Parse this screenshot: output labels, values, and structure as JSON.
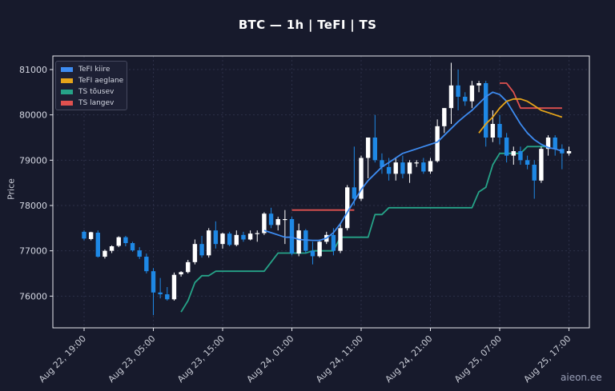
{
  "page": {
    "title": "BTC — 1h  |  TeFI  |  TS",
    "watermark": "aieon.ee"
  },
  "colors": {
    "background": "#171a2c",
    "up": "#ffffff",
    "down": "#1e88e5",
    "fast": "#3d8bf0",
    "slow": "#e5a41a",
    "ts_up": "#26a388",
    "ts_down": "#e0514f",
    "grid": "#2c3048",
    "axis": "#e8e9ef"
  },
  "chart_data": {
    "type": "candlestick",
    "title": "BTC — 1h  |  TeFI  |  TS",
    "xlabel": "",
    "ylabel": "Price",
    "ylim": [
      75300,
      81300
    ],
    "x_ticks": [
      "Aug 22, 19:00",
      "Aug 23, 05:00",
      "Aug 23, 15:00",
      "Aug 24, 01:00",
      "Aug 24, 11:00",
      "Aug 24, 21:00",
      "Aug 25, 07:00",
      "Aug 25, 17:00"
    ],
    "y_ticks": [
      76000,
      77000,
      78000,
      79000,
      80000,
      81000
    ],
    "grid": true,
    "legend_position": "top-left",
    "legend": [
      {
        "name": "TeFI kiire",
        "color": "#3d8bf0"
      },
      {
        "name": "TeFI aeglane",
        "color": "#e5a41a"
      },
      {
        "name": "TS tõusev",
        "color": "#26a388"
      },
      {
        "name": "TS langev",
        "color": "#e0514f"
      }
    ],
    "candles": [
      [
        77420,
        77450,
        77230,
        77270
      ],
      [
        77260,
        77420,
        77230,
        77410
      ],
      [
        77400,
        77450,
        76850,
        76870
      ],
      [
        76870,
        77030,
        76830,
        77000
      ],
      [
        77000,
        77120,
        76950,
        77100
      ],
      [
        77110,
        77320,
        77080,
        77300
      ],
      [
        77300,
        77330,
        77100,
        77170
      ],
      [
        77170,
        77200,
        76980,
        77010
      ],
      [
        77010,
        77080,
        76820,
        76870
      ],
      [
        76870,
        76940,
        76500,
        76550
      ],
      [
        76550,
        76620,
        75580,
        76080
      ],
      [
        76080,
        76400,
        75950,
        76040
      ],
      [
        76040,
        76200,
        75900,
        75930
      ],
      [
        75930,
        76520,
        75900,
        76470
      ],
      [
        76480,
        76550,
        76430,
        76530
      ],
      [
        76530,
        76800,
        76500,
        76750
      ],
      [
        76750,
        77250,
        76700,
        77150
      ],
      [
        77150,
        77330,
        76850,
        76900
      ],
      [
        76900,
        77500,
        76850,
        77450
      ],
      [
        77450,
        77650,
        77050,
        77150
      ],
      [
        77150,
        77400,
        77050,
        77380
      ],
      [
        77380,
        77420,
        77100,
        77130
      ],
      [
        77130,
        77450,
        77100,
        77350
      ],
      [
        77350,
        77420,
        77200,
        77250
      ],
      [
        77250,
        77450,
        77230,
        77380
      ],
      [
        77380,
        77450,
        77200,
        77390
      ],
      [
        77390,
        77850,
        77350,
        77820
      ],
      [
        77820,
        77950,
        77500,
        77570
      ],
      [
        77570,
        77750,
        77450,
        77700
      ],
      [
        77700,
        77900,
        77150,
        77700
      ],
      [
        77700,
        77750,
        76900,
        76940
      ],
      [
        76940,
        77600,
        76880,
        77450
      ],
      [
        77450,
        77480,
        76950,
        77000
      ],
      [
        77000,
        77200,
        76700,
        76880
      ],
      [
        76880,
        77250,
        76850,
        77200
      ],
      [
        77200,
        77420,
        77150,
        77350
      ],
      [
        77350,
        77500,
        76900,
        77000
      ],
      [
        77000,
        77600,
        76950,
        77500
      ],
      [
        77500,
        78450,
        77450,
        78400
      ],
      [
        78400,
        79300,
        78000,
        78150
      ],
      [
        78150,
        79100,
        78100,
        79050
      ],
      [
        79050,
        79500,
        78600,
        79500
      ],
      [
        79500,
        80000,
        78950,
        79000
      ],
      [
        79000,
        79150,
        78700,
        78850
      ],
      [
        78850,
        79050,
        78550,
        78700
      ],
      [
        78700,
        79050,
        78550,
        78950
      ],
      [
        78950,
        79100,
        78600,
        78700
      ],
      [
        78700,
        79000,
        78500,
        78950
      ],
      [
        78950,
        79000,
        78850,
        78950
      ],
      [
        78950,
        79050,
        78700,
        78750
      ],
      [
        78750,
        79050,
        78700,
        78980
      ],
      [
        78980,
        79900,
        78950,
        79750
      ],
      [
        79750,
        80150,
        79600,
        80150
      ],
      [
        80150,
        81150,
        79800,
        80650
      ],
      [
        80650,
        81000,
        80100,
        80400
      ],
      [
        80400,
        80500,
        80200,
        80300
      ],
      [
        80300,
        80750,
        80150,
        80650
      ],
      [
        80650,
        80750,
        80500,
        80700
      ],
      [
        80700,
        80750,
        79300,
        79500
      ],
      [
        79500,
        80100,
        79400,
        79800
      ],
      [
        79800,
        80000,
        79350,
        79500
      ],
      [
        79500,
        79600,
        78950,
        79100
      ],
      [
        79100,
        79300,
        78900,
        79200
      ],
      [
        79200,
        79300,
        78900,
        79000
      ],
      [
        79000,
        79100,
        78800,
        78900
      ],
      [
        78900,
        79000,
        78150,
        78550
      ],
      [
        78550,
        79300,
        78500,
        79250
      ],
      [
        79250,
        79550,
        79100,
        79500
      ],
      [
        79500,
        79550,
        79100,
        79250
      ],
      [
        79250,
        79350,
        78800,
        79150
      ],
      [
        79150,
        79300,
        79100,
        79200
      ]
    ],
    "series": [
      {
        "name": "TeFI kiire",
        "color": "#3d8bf0",
        "start_index": 26,
        "values": [
          77450,
          77400,
          77350,
          77300,
          77300,
          77250,
          77240,
          77230,
          77230,
          77280,
          77400,
          77600,
          77850,
          78100,
          78350,
          78550,
          78700,
          78850,
          78950,
          79050,
          79150,
          79200,
          79250,
          79300,
          79350,
          79400,
          79550,
          79700,
          79850,
          79980,
          80100,
          80250,
          80400,
          80500,
          80450,
          80300,
          80050,
          79800,
          79600,
          79450,
          79350,
          79280,
          79250,
          79200
        ]
      },
      {
        "name": "TeFI aeglane",
        "color": "#e5a41a",
        "start_index": 57,
        "values": [
          79600,
          79800,
          79950,
          80150,
          80300,
          80350,
          80350,
          80300,
          80200,
          80100,
          80050,
          80000,
          79950
        ]
      },
      {
        "name": "TS tõusev",
        "color": "#26a388",
        "start_index": 14,
        "values": [
          75650,
          75900,
          76300,
          76450,
          76450,
          76550,
          76550,
          76550,
          76550,
          76550,
          76550,
          76550,
          76550,
          76750,
          76950,
          76950,
          76950,
          76950,
          76950,
          77000,
          77000,
          77000,
          77000,
          77300,
          77300,
          77300,
          77300,
          77300,
          77800,
          77800,
          77950,
          77950,
          77950,
          77950,
          77950,
          77950,
          77950,
          77950,
          77950,
          77950,
          77950,
          77950,
          77950,
          78300,
          78400,
          78900,
          79150,
          79150,
          79150,
          79150,
          79300,
          79300,
          79300,
          79300
        ]
      },
      {
        "name": "TS langev",
        "color": "#e0514f",
        "start_index": 30,
        "values": [
          77900,
          77900,
          77900,
          77900,
          77900,
          77900,
          77900,
          77900,
          77900,
          77900
        ]
      },
      {
        "name": "TS langev",
        "color": "#e0514f",
        "start_index": 60,
        "values": [
          80700,
          80700,
          80500,
          80150,
          80150,
          80150,
          80150,
          80150,
          80150,
          80150
        ]
      }
    ]
  }
}
